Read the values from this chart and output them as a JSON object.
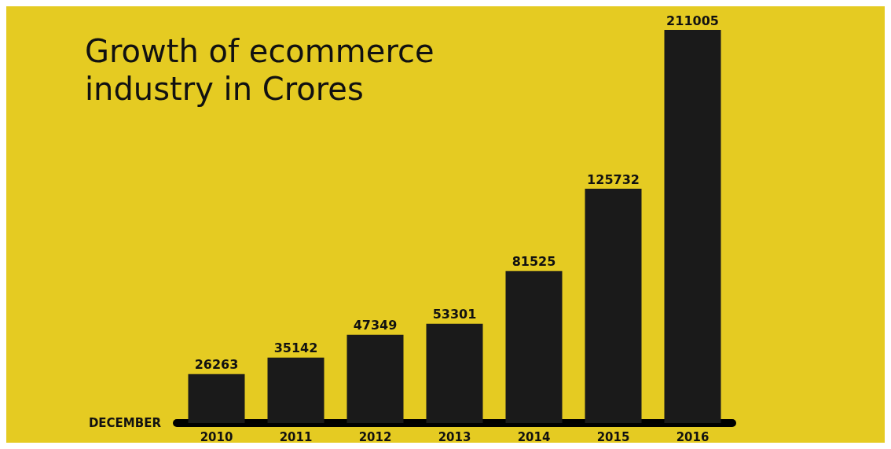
{
  "chart_data": {
    "type": "bar",
    "title": "Growth of ecommerce industry in Crores",
    "xlabel": "DECEMBER",
    "categories": [
      "2010",
      "2011",
      "2012",
      "2013",
      "2014",
      "2015",
      "2016"
    ],
    "values": [
      26263,
      35142,
      47349,
      53301,
      81525,
      125732,
      211005
    ],
    "color": "#1a1a1a",
    "data_labels": true
  }
}
